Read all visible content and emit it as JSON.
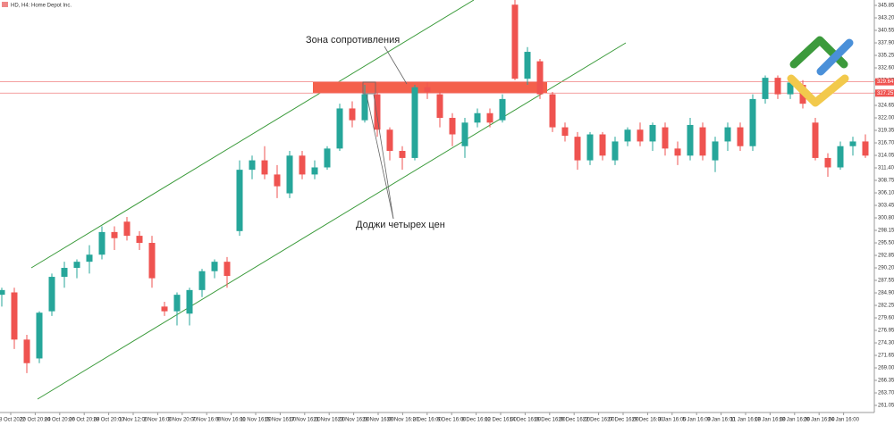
{
  "chart_data": {
    "type": "candlestick",
    "title": "HD, H4:  Home Depot Inc.",
    "up_color": "#26a69a",
    "down_color": "#ef5350",
    "zone_color": "#f4604c",
    "line_color": "#f08080",
    "ylim": [
      259.54,
      346.99
    ],
    "yticks": [
      {
        "value": 261.05,
        "label": "261.05"
      },
      {
        "value": 263.7,
        "label": "263.70"
      },
      {
        "value": 266.35,
        "label": "266.35"
      },
      {
        "value": 269,
        "label": "269.00"
      },
      {
        "value": 271.65,
        "label": "271.65"
      },
      {
        "value": 274.3,
        "label": "274.30"
      },
      {
        "value": 276.95,
        "label": "276.95"
      },
      {
        "value": 279.6,
        "label": "279.60"
      },
      {
        "value": 282.25,
        "label": "282.25"
      },
      {
        "value": 284.9,
        "label": "284.90"
      },
      {
        "value": 287.55,
        "label": "287.55"
      },
      {
        "value": 290.2,
        "label": "290.20"
      },
      {
        "value": 292.85,
        "label": "292.85"
      },
      {
        "value": 295.5,
        "label": "295.50"
      },
      {
        "value": 298.15,
        "label": "298.15"
      },
      {
        "value": 300.8,
        "label": "300.80"
      },
      {
        "value": 303.45,
        "label": "303.45"
      },
      {
        "value": 306.1,
        "label": "306.10"
      },
      {
        "value": 308.75,
        "label": "308.75"
      },
      {
        "value": 311.4,
        "label": "311.40"
      },
      {
        "value": 314.05,
        "label": "314.05"
      },
      {
        "value": 316.7,
        "label": "316.70"
      },
      {
        "value": 319.35,
        "label": "319.35"
      },
      {
        "value": 322,
        "label": "322.00"
      },
      {
        "value": 324.65,
        "label": "324.65"
      },
      {
        "value": 327.3,
        "label": "327.30"
      },
      {
        "value": 329.95,
        "label": "329.95"
      },
      {
        "value": 332.6,
        "label": "332.60"
      },
      {
        "value": 335.25,
        "label": "335.25"
      },
      {
        "value": 337.9,
        "label": "337.90"
      },
      {
        "value": 340.55,
        "label": "340.55"
      },
      {
        "value": 343.2,
        "label": "343.20"
      },
      {
        "value": 345.85,
        "label": "345.85"
      }
    ],
    "hlines": [
      {
        "value": 329.64,
        "label": "329.64"
      },
      {
        "value": 327.25,
        "label": "327.25"
      }
    ],
    "xticks": [
      "18 Oct 2022",
      "20 Oct 20:00",
      "24 Oct 20:00",
      "26 Oct 20:00",
      "28 Oct 20:00",
      "1 Nov 12:00",
      "2 Nov 16:00",
      "3 Nov 20:00",
      "7 Nov 16:00",
      "9 Nov 16:00",
      "11 Nov 16:00",
      "15 Nov 16:00",
      "17 Nov 16:00",
      "21 Nov 16:00",
      "23 Nov 16:00",
      "28 Nov 16:00",
      "30 Nov 16:00",
      "2 Dec 16:00",
      "6 Dec 16:00",
      "8 Dec 16:00",
      "12 Dec 16:00",
      "14 Dec 16:00",
      "16 Dec 16:00",
      "20 Dec 16:00",
      "22 Dec 16:00",
      "27 Dec 16:00",
      "29 Dec 16:00",
      "3 Jan 16:00",
      "5 Jan 16:00",
      "9 Jan 16:00",
      "11 Jan 16:00",
      "13 Jan 16:00",
      "18 Jan 16:00",
      "20 Jan 16:00",
      "24 Jan 16:00"
    ],
    "candles": [
      [
        284.5,
        286,
        282,
        285.5
      ],
      [
        285,
        286,
        273,
        275
      ],
      [
        275,
        276,
        267.9,
        270
      ],
      [
        271,
        281,
        270,
        280.7
      ],
      [
        281,
        289,
        280,
        288.3
      ],
      [
        288.3,
        291.5,
        286,
        290.2
      ],
      [
        290.2,
        292,
        288,
        291.5
      ],
      [
        291.5,
        295,
        289,
        293
      ],
      [
        293,
        299,
        292,
        297.8
      ],
      [
        297.8,
        299,
        294,
        296.5
      ],
      [
        300,
        301,
        296,
        297
      ],
      [
        297,
        298,
        294,
        295.5
      ],
      [
        295.5,
        297,
        286,
        288
      ],
      [
        282,
        283,
        280,
        281
      ],
      [
        281,
        285,
        278,
        284.5
      ],
      [
        280.5,
        286,
        278,
        285.5
      ],
      [
        285.5,
        290,
        284,
        289.5
      ],
      [
        289.5,
        292,
        288,
        291.5
      ],
      [
        291.5,
        292.5,
        286,
        288.5
      ],
      [
        298,
        313,
        297,
        311
      ],
      [
        311,
        314,
        309,
        313
      ],
      [
        313,
        316,
        309,
        310
      ],
      [
        310,
        312,
        305,
        307.5
      ],
      [
        306,
        315,
        305,
        314
      ],
      [
        314,
        315,
        309,
        310
      ],
      [
        310,
        313,
        309,
        311.5
      ],
      [
        311.5,
        316,
        311,
        315.5
      ],
      [
        315.5,
        325,
        315,
        324
      ],
      [
        324,
        325.5,
        320,
        321.5
      ],
      [
        321.5,
        329,
        321,
        327
      ],
      [
        327,
        327.5,
        318,
        319.5
      ],
      [
        319.5,
        320,
        313,
        315
      ],
      [
        315,
        316,
        311,
        313.5
      ],
      [
        313.5,
        329,
        313,
        328.5
      ],
      [
        328.5,
        329.5,
        326,
        327.5
      ],
      [
        327,
        327.5,
        320,
        322
      ],
      [
        322,
        323,
        316,
        318.5
      ],
      [
        316,
        322,
        313.5,
        321
      ],
      [
        321,
        324,
        320,
        323
      ],
      [
        323,
        324,
        320,
        321
      ],
      [
        321.5,
        327,
        321,
        326
      ],
      [
        346,
        347,
        330,
        330.3
      ],
      [
        330.3,
        337,
        329,
        336
      ],
      [
        334,
        334.5,
        326,
        327
      ],
      [
        327,
        327.5,
        319,
        320
      ],
      [
        320,
        321,
        317,
        318.2
      ],
      [
        318,
        319,
        311,
        313
      ],
      [
        313,
        319,
        312,
        318.5
      ],
      [
        318.5,
        319,
        313,
        314
      ],
      [
        313,
        318,
        312,
        317
      ],
      [
        317,
        320,
        316,
        319.5
      ],
      [
        319.5,
        321,
        316,
        317
      ],
      [
        317,
        321,
        315,
        320.5
      ],
      [
        320,
        321,
        314,
        315.5
      ],
      [
        315.5,
        317,
        312,
        314
      ],
      [
        314,
        322,
        313,
        320.5
      ],
      [
        320,
        321,
        313,
        314
      ],
      [
        313,
        318,
        310.5,
        317
      ],
      [
        317,
        321,
        315,
        320
      ],
      [
        320,
        321,
        315,
        316
      ],
      [
        316,
        327,
        315,
        326
      ],
      [
        326,
        331,
        325,
        330.5
      ],
      [
        330.5,
        331,
        326,
        327
      ],
      [
        327,
        330,
        326,
        329.5
      ],
      [
        329,
        330,
        324,
        325
      ],
      [
        321,
        322,
        313,
        313.5
      ],
      [
        313.5,
        314.5,
        309.5,
        311.5
      ],
      [
        311.5,
        317,
        311,
        316
      ],
      [
        316,
        318,
        314,
        317
      ],
      [
        317,
        318.5,
        313.5,
        314
      ]
    ],
    "annotations": [
      "Зона сопротивления",
      "Доджи четырех цен"
    ]
  }
}
